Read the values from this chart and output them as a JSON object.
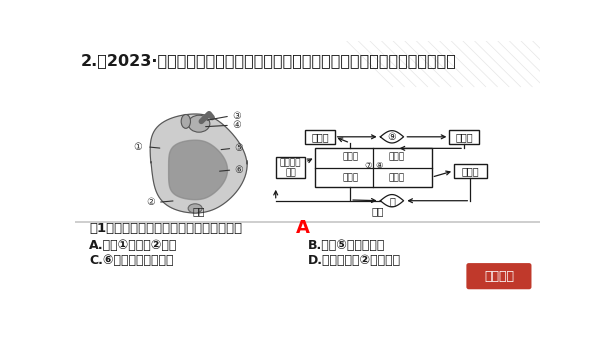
{
  "bg_color": "#ffffff",
  "title": "2.（2023·青岛中考真题）某同学梳理了心脏、血管和血液间的关系，内容如下：",
  "title_color": "#1a1a1a",
  "title_fontsize": 11.5,
  "question_text": "（1）下列关于图一的叙述，符合事实的是",
  "answer": "A",
  "answer_color": "#ff0000",
  "opt_A": "A.血管①的壁比②的厚",
  "opt_B": "B.血管⑤内流静脉血",
  "opt_C": "C.⑥右心室连接肺动脉",
  "opt_D": "D.心脏四腔中②的壁最厚",
  "fig1_label": "图一",
  "fig2_label": "图二",
  "button_text": "链接中考",
  "button_bg": "#c0392b",
  "button_text_color": "#ffffff",
  "lc": "#1a1a1a",
  "box_feidongmai": "胺动脉",
  "box_feijingmai": "胺静脉",
  "box_shangxia": "上、下腔\n静脉",
  "box_youxinfang": "右心房",
  "box_zuoxinfang": "左心房",
  "box_youxinshi": "右心室",
  "box_zuoxinshi": "左心室",
  "box_zhudongmai": "主动脉",
  "cap9": "⑨",
  "cap10": "⑪",
  "lbl7": "⑦",
  "lbl8": "⑧",
  "heart_nums": [
    "①",
    "②",
    "③",
    "④",
    "⑤",
    "⑥"
  ]
}
